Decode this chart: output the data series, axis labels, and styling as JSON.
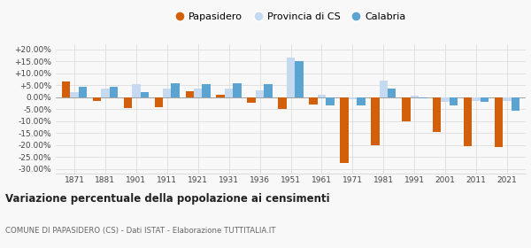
{
  "years": [
    1871,
    1881,
    1901,
    1911,
    1921,
    1931,
    1936,
    1951,
    1961,
    1971,
    1981,
    1991,
    2001,
    2011,
    2021
  ],
  "papasidero": [
    6.5,
    -1.5,
    -4.5,
    -4.0,
    2.5,
    1.0,
    -2.5,
    -5.0,
    -3.0,
    -27.5,
    -20.0,
    -10.0,
    -14.5,
    -20.5,
    -21.0
  ],
  "provincia_cs": [
    2.0,
    3.5,
    5.5,
    3.5,
    3.5,
    3.5,
    3.0,
    16.5,
    1.0,
    -1.0,
    7.0,
    0.5,
    -2.0,
    -1.5,
    -1.5
  ],
  "calabria": [
    4.5,
    4.5,
    2.0,
    6.0,
    5.5,
    6.0,
    5.5,
    15.0,
    -3.5,
    -3.5,
    3.5,
    -0.5,
    -3.5,
    -2.0,
    -5.5
  ],
  "papasidero_color": "#d45f0a",
  "provincia_cs_color": "#c5d9f1",
  "calabria_color": "#5ba3d0",
  "title": "Variazione percentuale della popolazione ai censimenti",
  "subtitle": "COMUNE DI PAPASIDERO (CS) - Dati ISTAT - Elaborazione TUTTITALIA.IT",
  "legend_labels": [
    "Papasidero",
    "Provincia di CS",
    "Calabria"
  ],
  "ylim": [
    -32,
    22
  ],
  "yticks": [
    -30,
    -25,
    -20,
    -15,
    -10,
    -5,
    0,
    5,
    10,
    15,
    20
  ],
  "background_color": "#f8f8f8",
  "grid_color": "#dddddd",
  "bar_width": 0.27
}
